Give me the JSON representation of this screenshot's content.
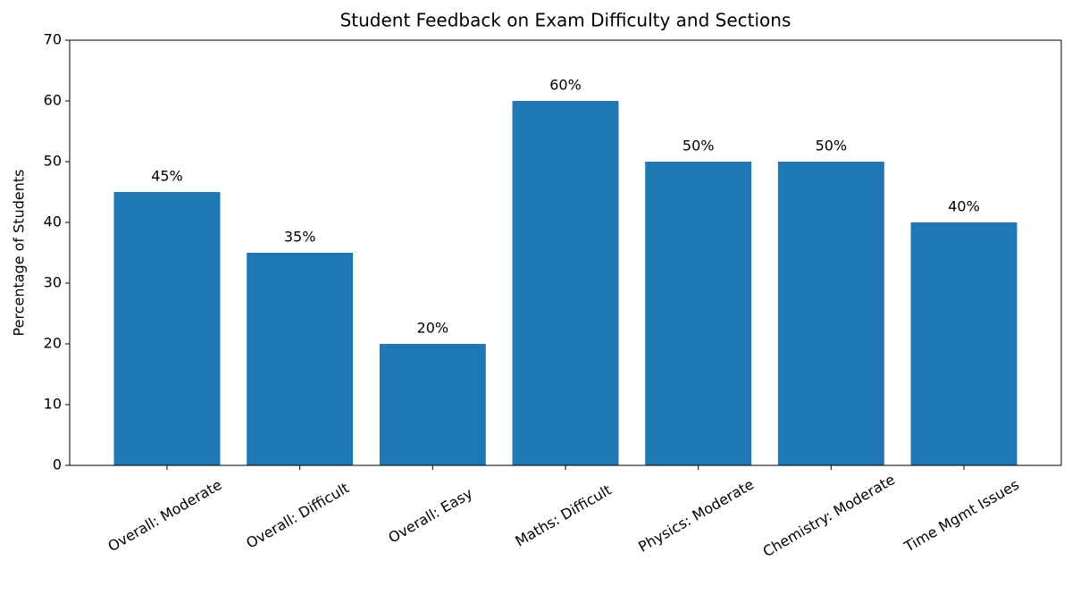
{
  "chart_data": {
    "type": "bar",
    "title": "Student Feedback on Exam Difficulty and Sections",
    "y_label": "Percentage of Students",
    "categories": [
      "Overall: Moderate",
      "Overall: Difficult",
      "Overall: Easy",
      "Maths: Difficult",
      "Physics: Moderate",
      "Chemistry: Moderate",
      "Time Mgmt Issues"
    ],
    "values": [
      45,
      35,
      20,
      60,
      50,
      50,
      40
    ],
    "value_labels": [
      "45%",
      "35%",
      "20%",
      "60%",
      "50%",
      "50%",
      "40%"
    ],
    "color": "#1f77b4",
    "ylim": [
      0,
      70
    ],
    "yticks": [
      0,
      10,
      20,
      30,
      40,
      50,
      60,
      70
    ],
    "grid": false
  }
}
